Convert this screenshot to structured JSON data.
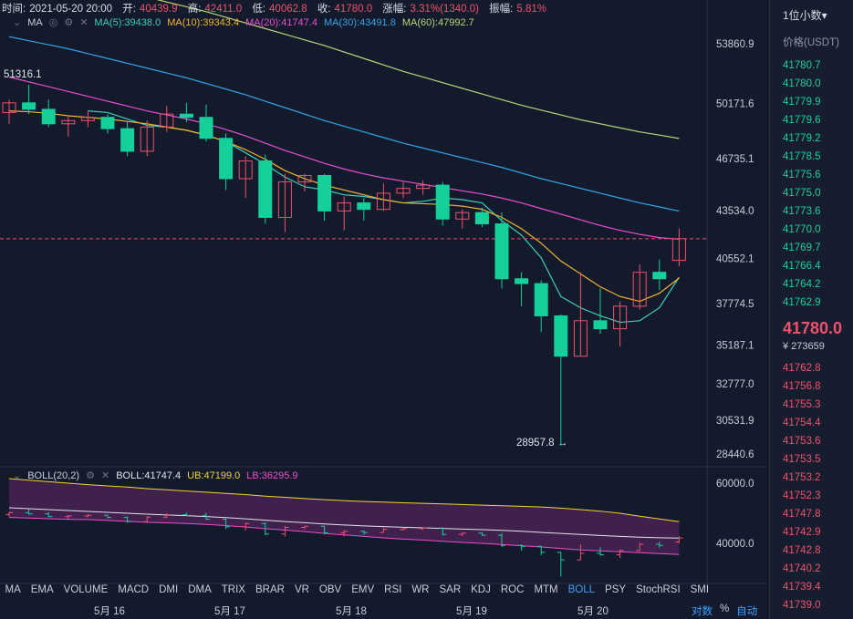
{
  "info_bar": {
    "time_label": "时间:",
    "time": "2021-05-20 20:00",
    "open_label": "开:",
    "open": "40439.9",
    "high_label": "高:",
    "high": "42411.0",
    "low_label": "低:",
    "low": "40062.8",
    "close_label": "收:",
    "close": "41780.0",
    "change_label": "涨幅:",
    "change": "3.31%(1340.0)",
    "amp_label": "振幅:",
    "amp": "5.81%"
  },
  "ma_bar": {
    "name": "MA",
    "items": [
      {
        "label": "MA(5):39438.0",
        "color": "#3ad0b8"
      },
      {
        "label": "MA(10):39343.4",
        "color": "#f2b431"
      },
      {
        "label": "MA(20):41747.4",
        "color": "#e84fd0"
      },
      {
        "label": "MA(30):43491.8",
        "color": "#32a4e8"
      },
      {
        "label": "MA(60):47992.7",
        "color": "#b8d67a"
      }
    ]
  },
  "boll_bar": {
    "name": "BOLL(20,2)",
    "boll": "BOLL:41747.4",
    "ub": "UB:47199.0",
    "lb": "LB:36295.9",
    "colors": {
      "boll": "#e0e4ec",
      "ub": "#f2d430",
      "lb": "#e84fd0"
    }
  },
  "price_axis": [
    "53860.9",
    "50171.6",
    "46735.1",
    "43534.0",
    "40552.1",
    "37774.5",
    "35187.1",
    "32777.0",
    "30531.9",
    "28440.6"
  ],
  "sub_axis": [
    "60000.0",
    "40000.0"
  ],
  "annotations": {
    "high": "51316.1",
    "low": "28957.8 →"
  },
  "indicator_tabs": [
    "MA",
    "EMA",
    "VOLUME",
    "MACD",
    "DMI",
    "DMA",
    "TRIX",
    "BRAR",
    "VR",
    "OBV",
    "EMV",
    "RSI",
    "WR",
    "SAR",
    "KDJ",
    "ROC",
    "MTM",
    "BOLL",
    "PSY",
    "StochRSI",
    "SMI"
  ],
  "active_tab": "BOLL",
  "date_axis": [
    "5月 16",
    "5月 17",
    "5月 18",
    "5月 19",
    "5月 20"
  ],
  "scale_controls": {
    "log": "对数",
    "pct": "%",
    "auto": "自动"
  },
  "orderbook": {
    "precision": "1位小数▾",
    "header": "价格(USDT)",
    "asks": [
      "41780.7",
      "41780.0",
      "41779.9",
      "41779.6",
      "41779.2",
      "41778.5",
      "41775.6",
      "41775.0",
      "41773.6",
      "41770.0",
      "41769.7",
      "41766.4",
      "41764.2",
      "41762.9"
    ],
    "price": "41780.0",
    "volume": "¥ 273659",
    "bids": [
      "41762.8",
      "41756.8",
      "41755.3",
      "41754.4",
      "41753.6",
      "41753.5",
      "41753.2",
      "41752.3",
      "41747.8",
      "41742.9",
      "41742.8",
      "41740.2",
      "41739.4",
      "41739.0"
    ]
  },
  "colors": {
    "up": "#f0516c",
    "down": "#15d09a",
    "bg": "#131a2b",
    "accent": "#3aa0ff"
  },
  "candles": [
    [
      49600,
      50400,
      48900,
      50200
    ],
    [
      50200,
      51316,
      49500,
      49800
    ],
    [
      49800,
      50400,
      48700,
      48900
    ],
    [
      48900,
      49400,
      48100,
      49100
    ],
    [
      49100,
      49700,
      48700,
      49300
    ],
    [
      49300,
      49500,
      48300,
      48600
    ],
    [
      48600,
      49000,
      46900,
      47200
    ],
    [
      47200,
      49100,
      46900,
      48700
    ],
    [
      48700,
      50000,
      48400,
      49500
    ],
    [
      49500,
      50200,
      49000,
      49300
    ],
    [
      49300,
      50100,
      47800,
      48000
    ],
    [
      48000,
      48300,
      44800,
      45500
    ],
    [
      45500,
      46900,
      44300,
      46600
    ],
    [
      46600,
      47000,
      42700,
      43100
    ],
    [
      43100,
      45800,
      42200,
      45300
    ],
    [
      45300,
      45800,
      44700,
      45700
    ],
    [
      45700,
      45800,
      42900,
      43500
    ],
    [
      43500,
      44400,
      42300,
      44000
    ],
    [
      44000,
      44300,
      42900,
      43600
    ],
    [
      43600,
      45200,
      43500,
      44600
    ],
    [
      44600,
      45300,
      44300,
      44900
    ],
    [
      44900,
      45400,
      44500,
      45100
    ],
    [
      45100,
      45300,
      42600,
      43000
    ],
    [
      43000,
      43600,
      42400,
      43400
    ],
    [
      43400,
      43700,
      42500,
      42700
    ],
    [
      42700,
      43400,
      38700,
      39300
    ],
    [
      39300,
      39700,
      37600,
      39000
    ],
    [
      39000,
      39200,
      36000,
      37000
    ],
    [
      37000,
      37100,
      28958,
      34500
    ],
    [
      34500,
      39700,
      34500,
      36700
    ],
    [
      36700,
      38700,
      35900,
      36200
    ],
    [
      36200,
      37900,
      35100,
      37600
    ],
    [
      37600,
      40200,
      37400,
      39700
    ],
    [
      39700,
      40500,
      38600,
      39300
    ],
    [
      40440,
      42411,
      40063,
      41780
    ]
  ],
  "ma_series": {
    "ma5": [
      null,
      null,
      null,
      null,
      49700,
      49600,
      49200,
      48800,
      48700,
      48500,
      48200,
      47800,
      47100,
      46400,
      45600,
      45000,
      44800,
      44500,
      44400,
      44200,
      44000,
      44100,
      44300,
      44200,
      44000,
      42900,
      42000,
      40600,
      38200,
      37500,
      37000,
      36600,
      36700,
      37500,
      39400
    ],
    "ma10": [
      49700,
      49650,
      49550,
      49400,
      49300,
      49200,
      49050,
      48900,
      48700,
      48500,
      48200,
      47800,
      47300,
      46700,
      46000,
      45500,
      45100,
      44800,
      44500,
      44200,
      44000,
      43950,
      43900,
      43800,
      43600,
      43100,
      42400,
      41500,
      40400,
      39600,
      38800,
      38200,
      37900,
      38400,
      39343
    ],
    "ma20": [
      51800,
      51500,
      51200,
      50900,
      50600,
      50300,
      50000,
      49700,
      49450,
      49200,
      48900,
      48550,
      48150,
      47700,
      47250,
      46850,
      46450,
      46100,
      45800,
      45550,
      45350,
      45150,
      44950,
      44750,
      44550,
      44300,
      44000,
      43650,
      43300,
      42950,
      42600,
      42300,
      42050,
      41850,
      41747
    ],
    "ma30": [
      54300,
      54050,
      53800,
      53550,
      53250,
      52950,
      52650,
      52350,
      52050,
      51750,
      51400,
      51050,
      50700,
      50300,
      49900,
      49500,
      49100,
      48750,
      48400,
      48050,
      47700,
      47400,
      47100,
      46800,
      46500,
      46200,
      45850,
      45500,
      45200,
      44900,
      44600,
      44300,
      44000,
      43750,
      43491
    ],
    "ma60": [
      58700,
      58450,
      58200,
      57950,
      57650,
      57350,
      57050,
      56750,
      56450,
      56150,
      55850,
      55500,
      55150,
      54800,
      54450,
      54100,
      53750,
      53350,
      52950,
      52550,
      52150,
      51800,
      51450,
      51100,
      50750,
      50400,
      50050,
      49750,
      49450,
      49150,
      48900,
      48650,
      48400,
      48200,
      47992
    ]
  },
  "boll_series": {
    "ub": [
      61500,
      61000,
      60500,
      60000,
      59500,
      59100,
      58700,
      58200,
      57800,
      57400,
      57000,
      56600,
      56200,
      55700,
      55300,
      54900,
      54500,
      54200,
      53900,
      53700,
      53500,
      53300,
      53100,
      52900,
      52700,
      52500,
      52300,
      52100,
      51700,
      51200,
      50700,
      50000,
      49000,
      48100,
      47199
    ],
    "mid": [
      51800,
      51500,
      51200,
      50900,
      50600,
      50300,
      50000,
      49700,
      49450,
      49200,
      48900,
      48550,
      48150,
      47700,
      47250,
      46850,
      46450,
      46100,
      45800,
      45550,
      45350,
      45150,
      44950,
      44750,
      44550,
      44300,
      44000,
      43650,
      43300,
      42950,
      42600,
      42300,
      42050,
      41850,
      41747
    ],
    "lb": [
      48600,
      48400,
      48200,
      48000,
      47900,
      47600,
      47300,
      47000,
      46800,
      46600,
      46300,
      45900,
      45400,
      44900,
      44400,
      43900,
      43300,
      42800,
      42300,
      41800,
      41400,
      41100,
      40700,
      40300,
      40000,
      39600,
      39200,
      38800,
      38300,
      37800,
      37500,
      37200,
      36900,
      36600,
      36296
    ]
  }
}
